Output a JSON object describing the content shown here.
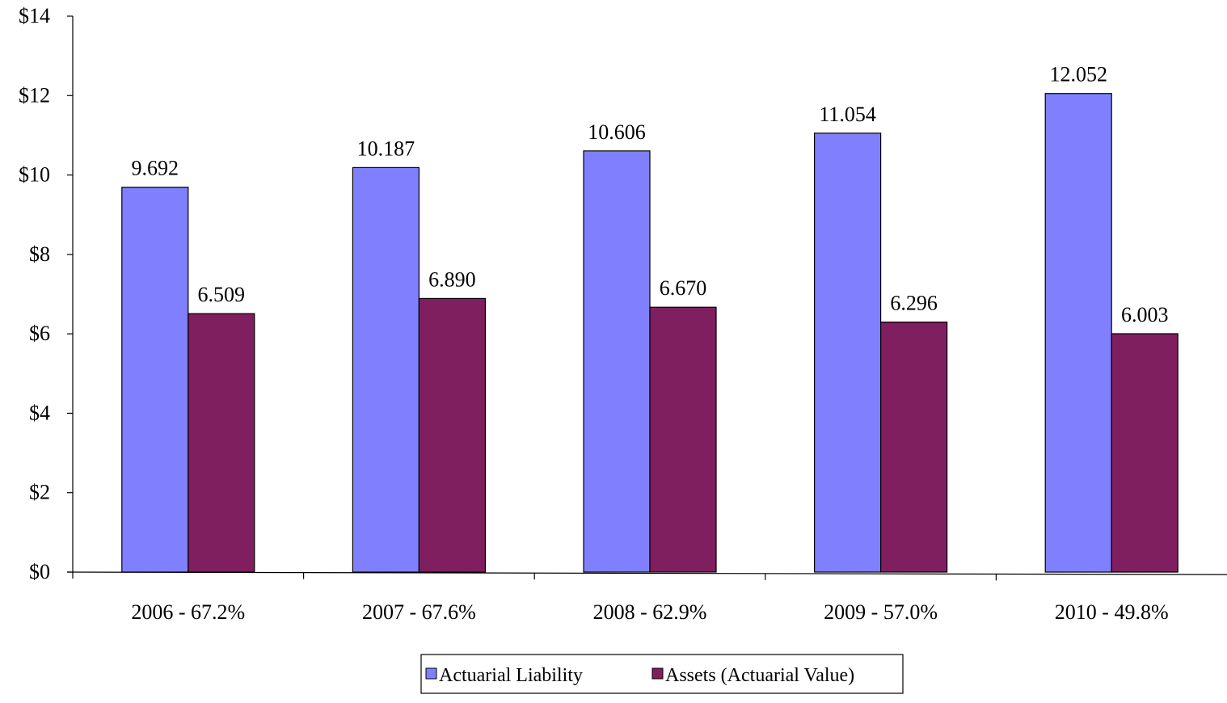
{
  "chart_data": {
    "type": "bar",
    "categories": [
      "2006 - 67.2%",
      "2007 - 67.6%",
      "2008 - 62.9%",
      "2009 - 57.0%",
      "2010 - 49.8%"
    ],
    "series": [
      {
        "name": "Actuarial Liability",
        "values": [
          9.692,
          10.187,
          10.606,
          11.054,
          12.052
        ],
        "labels": [
          "9.692",
          "10.187",
          "10.606",
          "11.054",
          "12.052"
        ],
        "color": "#8080ff"
      },
      {
        "name": "Assets (Actuarial Value)",
        "values": [
          6.509,
          6.89,
          6.67,
          6.296,
          6.003
        ],
        "labels": [
          "6.509",
          "6.890",
          "6.670",
          "6.296",
          "6.003"
        ],
        "color": "#801f5f"
      }
    ],
    "yticks": [
      "$0",
      "$2",
      "$4",
      "$6",
      "$8",
      "$10",
      "$12",
      "$14"
    ],
    "ylim": [
      0,
      14
    ],
    "grid": false,
    "legend_position": "bottom"
  }
}
